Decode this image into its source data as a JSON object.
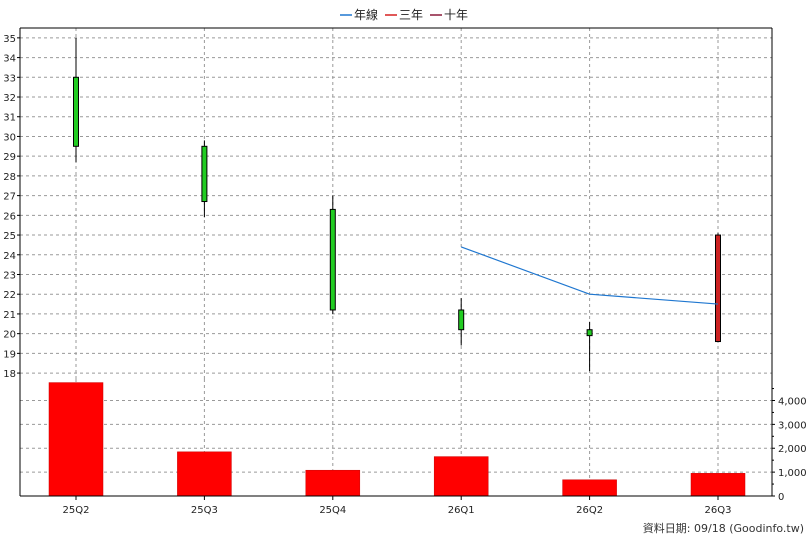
{
  "legend": [
    {
      "label": "年線",
      "color": "#1f77d0"
    },
    {
      "label": "三年",
      "color": "#d62020"
    },
    {
      "label": "十年",
      "color": "#8b1a3a"
    }
  ],
  "footer": "資料日期: 09/18  (Goodinfo.tw)",
  "chart_data": {
    "type": "candlestick+bar",
    "categories": [
      "25Q2",
      "25Q3",
      "25Q4",
      "26Q1",
      "26Q2",
      "26Q3"
    ],
    "candles": [
      {
        "open": 29.5,
        "close": 33.0,
        "high": 35.0,
        "low": 28.7,
        "color": "#22cc22"
      },
      {
        "open": 26.7,
        "close": 29.5,
        "high": 29.8,
        "low": 25.9,
        "color": "#22cc22"
      },
      {
        "open": 21.2,
        "close": 26.3,
        "high": 27.0,
        "low": 21.0,
        "color": "#22cc22"
      },
      {
        "open": 20.2,
        "close": 21.2,
        "high": 21.8,
        "low": 19.4,
        "color": "#22cc22"
      },
      {
        "open": 19.9,
        "close": 20.2,
        "high": 20.6,
        "low": 18.1,
        "color": "#22cc22"
      },
      {
        "open": 25.0,
        "close": 19.6,
        "high": 25.1,
        "low": 19.6,
        "color": "#cc2222"
      }
    ],
    "series": [
      {
        "name": "年線",
        "values": [
          null,
          null,
          null,
          24.4,
          22.0,
          21.5
        ]
      }
    ],
    "volume": [
      4750,
      1850,
      1080,
      1650,
      680,
      950
    ],
    "price_ylim": [
      17.7,
      35.5
    ],
    "price_yticks": [
      18,
      19,
      20,
      21,
      22,
      23,
      24,
      25,
      26,
      27,
      28,
      29,
      30,
      31,
      32,
      33,
      34,
      35
    ],
    "volume_ylim": [
      0,
      4900
    ],
    "volume_yticks": [
      0,
      1000,
      2000,
      3000,
      4000
    ],
    "volume_ytick_labels": [
      "0",
      "1,000",
      "2,000",
      "3,000",
      "4,000"
    ],
    "volume_color": "#ff0000",
    "grid": true
  }
}
